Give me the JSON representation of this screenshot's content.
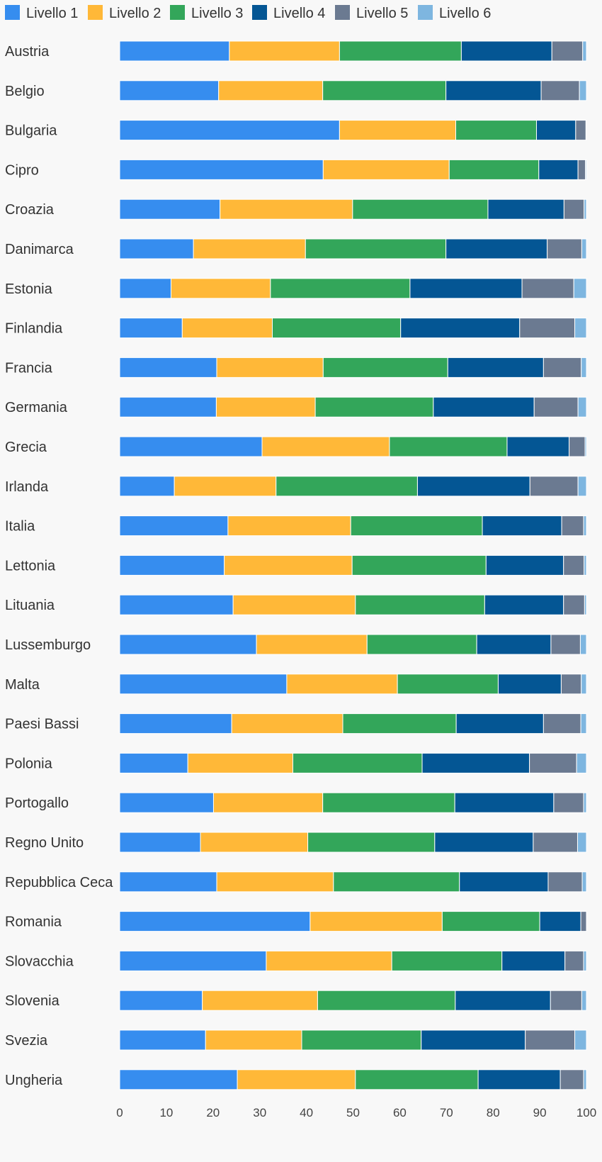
{
  "chart_data": {
    "type": "bar",
    "orientation": "horizontal",
    "stacked": true,
    "title": "",
    "xlabel": "",
    "ylabel": "",
    "xlim": [
      0,
      100
    ],
    "x_ticks": [
      "0",
      "10",
      "20",
      "30",
      "40",
      "50",
      "60",
      "70",
      "80",
      "90",
      "100"
    ],
    "grid": false,
    "legend_position": "top-left",
    "colors": [
      "#368DEF",
      "#FFB838",
      "#33A65A",
      "#045694",
      "#6B7A91",
      "#7EB6E0"
    ],
    "categories": [
      "Austria",
      "Belgio",
      "Bulgaria",
      "Cipro",
      "Croazia",
      "Danimarca",
      "Estonia",
      "Finlandia",
      "Francia",
      "Germania",
      "Grecia",
      "Irlanda",
      "Italia",
      "Lettonia",
      "Lituania",
      "Lussemburgo",
      "Malta",
      "Paesi Bassi",
      "Polonia",
      "Portogallo",
      "Regno Unito",
      "Repubblica Ceca",
      "Romania",
      "Slovacchia",
      "Slovenia",
      "Svezia",
      "Ungheria"
    ],
    "series": [
      {
        "name": "Livello 1",
        "values": [
          23.5,
          21.2,
          47.1,
          43.6,
          21.5,
          15.8,
          11.0,
          13.4,
          20.8,
          20.7,
          30.5,
          11.7,
          23.2,
          22.4,
          24.3,
          29.3,
          35.8,
          24.0,
          14.6,
          20.1,
          17.3,
          20.8,
          40.8,
          31.4,
          17.7,
          18.4,
          25.2
        ]
      },
      {
        "name": "Livello 2",
        "values": [
          23.6,
          22.3,
          24.9,
          27.0,
          28.4,
          24.0,
          21.3,
          19.3,
          22.8,
          21.2,
          27.3,
          21.8,
          26.3,
          27.4,
          26.2,
          23.7,
          23.7,
          23.8,
          22.5,
          23.4,
          23.0,
          25.0,
          28.3,
          26.9,
          24.7,
          20.6,
          25.3
        ]
      },
      {
        "name": "Livello 3",
        "values": [
          26.1,
          26.4,
          17.3,
          19.2,
          29.0,
          30.1,
          29.9,
          27.5,
          26.7,
          25.3,
          25.2,
          30.3,
          28.2,
          28.7,
          27.7,
          23.5,
          21.6,
          24.3,
          27.7,
          28.3,
          27.2,
          27.0,
          20.9,
          23.6,
          29.5,
          25.6,
          26.3
        ]
      },
      {
        "name": "Livello 4",
        "values": [
          19.4,
          20.4,
          8.4,
          8.4,
          16.3,
          21.7,
          24.0,
          25.5,
          20.5,
          21.6,
          13.3,
          24.1,
          17.0,
          16.6,
          16.9,
          15.9,
          13.5,
          18.7,
          23.0,
          21.2,
          21.1,
          19.0,
          8.8,
          13.5,
          20.4,
          22.3,
          17.6
        ]
      },
      {
        "name": "Livello 5",
        "values": [
          6.6,
          8.2,
          2.2,
          1.6,
          4.3,
          7.4,
          11.1,
          11.8,
          8.1,
          9.4,
          3.4,
          10.3,
          4.7,
          4.4,
          4.5,
          6.3,
          4.3,
          8.0,
          10.1,
          6.4,
          9.5,
          7.3,
          1.2,
          4.0,
          6.7,
          10.6,
          5.0
        ]
      },
      {
        "name": "Livello 6",
        "values": [
          0.8,
          1.5,
          0.1,
          0.2,
          0.5,
          1.0,
          2.7,
          2.5,
          1.1,
          1.8,
          0.3,
          1.8,
          0.6,
          0.5,
          0.4,
          1.3,
          1.1,
          1.2,
          2.1,
          0.6,
          1.9,
          0.9,
          0.0,
          0.6,
          1.0,
          2.5,
          0.6
        ]
      }
    ]
  }
}
